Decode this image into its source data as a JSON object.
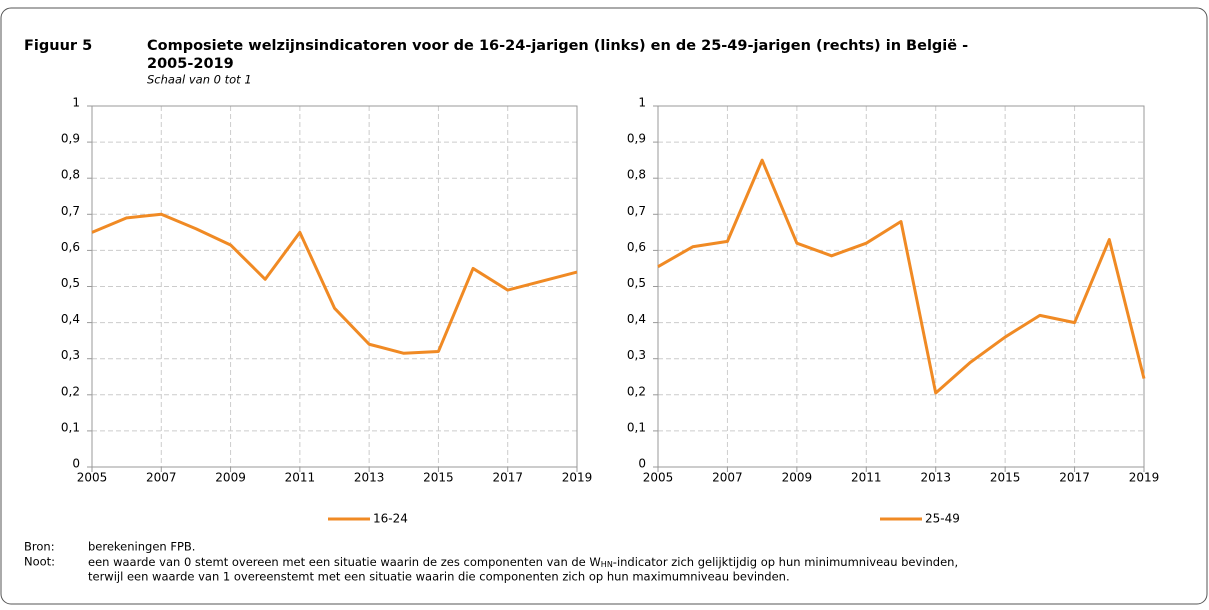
{
  "figure": {
    "label": "Figuur 5",
    "title_lines": [
      "Composiete welzijnsindicatoren voor de 16-24-jarigen (links) en de 25-49-jarigen (rechts) in België -",
      "2005-2019"
    ],
    "subtitle": "Schaal van 0 tot 1"
  },
  "source": {
    "label": "Bron:",
    "text": "berekeningen FPB."
  },
  "note": {
    "label": "Noot:",
    "parts": [
      "een waarde van 0 stemt overeen met een situatie waarin de zes componenten van de W",
      "HN",
      "-indicator zich gelijktijdig op hun minimumniveau bevinden,"
    ],
    "line2": "terwijl een waarde van 1 overeenstemt met een situatie waarin die componenten zich op hun maximumniveau bevinden."
  },
  "chart_data": [
    {
      "type": "line",
      "x": [
        2005,
        2006,
        2007,
        2008,
        2009,
        2010,
        2011,
        2012,
        2013,
        2014,
        2015,
        2016,
        2017,
        2018,
        2019
      ],
      "series": [
        {
          "name": "16-24",
          "color": "#f08a24",
          "values": [
            0.65,
            0.69,
            0.7,
            0.66,
            0.615,
            0.52,
            0.65,
            0.44,
            0.34,
            0.315,
            0.32,
            0.55,
            0.49,
            0.515,
            0.54
          ]
        }
      ],
      "xlim": [
        2005,
        2019
      ],
      "xticks": [
        2005,
        2007,
        2009,
        2011,
        2013,
        2015,
        2017,
        2019
      ],
      "ylim": [
        0,
        1
      ],
      "yticks": [
        0,
        {
          "value": 0.1,
          "label": "0,1"
        },
        {
          "value": 0.2,
          "label": "0,2"
        },
        {
          "value": 0.3,
          "label": "0,3"
        },
        {
          "value": 0.4,
          "label": "0,4"
        },
        {
          "value": 0.5,
          "label": "0,5"
        },
        {
          "value": 0.6,
          "label": "0,6"
        },
        {
          "value": 0.7,
          "label": "0,7"
        },
        {
          "value": 0.8,
          "label": "0,8"
        },
        {
          "value": 0.9,
          "label": "0,9"
        },
        1
      ],
      "grid": true,
      "legend": "bottom"
    },
    {
      "type": "line",
      "x": [
        2005,
        2006,
        2007,
        2008,
        2009,
        2010,
        2011,
        2012,
        2013,
        2014,
        2015,
        2016,
        2017,
        2018,
        2019
      ],
      "series": [
        {
          "name": "25-49",
          "color": "#f08a24",
          "values": [
            0.555,
            0.61,
            0.625,
            0.85,
            0.62,
            0.585,
            0.62,
            0.68,
            0.205,
            0.29,
            0.36,
            0.42,
            0.4,
            0.63,
            0.245
          ]
        }
      ],
      "xlim": [
        2005,
        2019
      ],
      "xticks": [
        2005,
        2007,
        2009,
        2011,
        2013,
        2015,
        2017,
        2019
      ],
      "ylim": [
        0,
        1
      ],
      "yticks": [
        0,
        {
          "value": 0.1,
          "label": "0,1"
        },
        {
          "value": 0.2,
          "label": "0,2"
        },
        {
          "value": 0.3,
          "label": "0,3"
        },
        {
          "value": 0.4,
          "label": "0,4"
        },
        {
          "value": 0.5,
          "label": "0,5"
        },
        {
          "value": 0.6,
          "label": "0,6"
        },
        {
          "value": 0.7,
          "label": "0,7"
        },
        {
          "value": 0.8,
          "label": "0,8"
        },
        {
          "value": 0.9,
          "label": "0,9"
        },
        1
      ],
      "grid": true,
      "legend": "bottom"
    }
  ]
}
